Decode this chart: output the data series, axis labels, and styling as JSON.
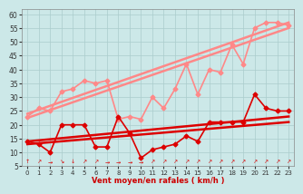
{
  "background_color": "#cce8e8",
  "grid_color": "#aacccc",
  "xlabel": "Vent moyen/en rafales ( km/h )",
  "xlim": [
    -0.5,
    23.5
  ],
  "ylim": [
    5,
    62
  ],
  "yticks": [
    5,
    10,
    15,
    20,
    25,
    30,
    35,
    40,
    45,
    50,
    55,
    60
  ],
  "xticks": [
    0,
    1,
    2,
    3,
    4,
    5,
    6,
    7,
    8,
    9,
    10,
    11,
    12,
    13,
    14,
    15,
    16,
    17,
    18,
    19,
    20,
    21,
    22,
    23
  ],
  "series_dark_jagged": {
    "x": [
      0,
      1,
      2,
      3,
      4,
      5,
      6,
      7,
      8,
      9,
      10,
      11,
      12,
      13,
      14,
      15,
      16,
      17,
      18,
      19,
      20,
      21,
      22,
      23
    ],
    "y": [
      14,
      13,
      10,
      20,
      20,
      20,
      12,
      12,
      23,
      17,
      8,
      11,
      12,
      13,
      16,
      14,
      21,
      21,
      21,
      21,
      31,
      26,
      25,
      25
    ],
    "color": "#dd0000",
    "lw": 1.2,
    "marker": "D",
    "ms": 2.5
  },
  "series_dark_trend1": {
    "x": [
      0,
      23
    ],
    "y": [
      14.0,
      23.0
    ],
    "color": "#dd0000",
    "lw": 1.8
  },
  "series_dark_trend2": {
    "x": [
      0,
      23
    ],
    "y": [
      13.0,
      21.0
    ],
    "color": "#dd0000",
    "lw": 1.8
  },
  "series_light_jagged": {
    "x": [
      0,
      1,
      2,
      3,
      4,
      5,
      6,
      7,
      8,
      9,
      10,
      11,
      12,
      13,
      14,
      15,
      16,
      17,
      18,
      19,
      20,
      21,
      22,
      23
    ],
    "y": [
      23,
      26,
      25,
      32,
      33,
      36,
      35,
      36,
      22,
      23,
      22,
      30,
      26,
      33,
      42,
      31,
      40,
      39,
      49,
      42,
      55,
      57,
      57,
      56
    ],
    "color": "#ff8888",
    "lw": 1.2,
    "marker": "D",
    "ms": 2.5
  },
  "series_light_trend1": {
    "x": [
      0,
      23
    ],
    "y": [
      24.0,
      57.0
    ],
    "color": "#ff8888",
    "lw": 1.8
  },
  "series_light_trend2": {
    "x": [
      0,
      23
    ],
    "y": [
      22.5,
      55.0
    ],
    "color": "#ff8888",
    "lw": 1.8
  },
  "arrow_directions": [
    0,
    45,
    90,
    135,
    180,
    45,
    45,
    90,
    90,
    90,
    90,
    45,
    45,
    45,
    45,
    45,
    45,
    45,
    45,
    45,
    45,
    45,
    45,
    45
  ]
}
